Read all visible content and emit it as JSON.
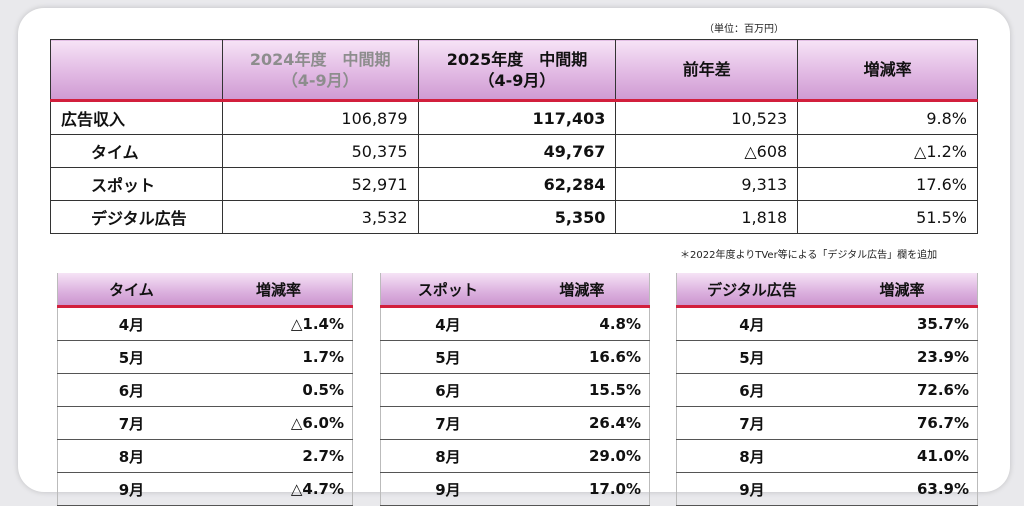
{
  "unit_note": "（単位：百万円）",
  "main": {
    "headers": [
      "",
      "2024年度　中間期\n（4-9月）",
      "2025年度　中間期\n（4-9月）",
      "前年差",
      "増減率"
    ],
    "rows": [
      {
        "label": "広告収入",
        "v2024": "106,879",
        "v2025": "117,403",
        "diff": "10,523",
        "rate": "9.8%"
      },
      {
        "label": "タイム",
        "v2024": "50,375",
        "v2025": "49,767",
        "diff": "△608",
        "rate": "△1.2%"
      },
      {
        "label": "スポット",
        "v2024": "52,971",
        "v2025": "62,284",
        "diff": "9,313",
        "rate": "17.6%"
      },
      {
        "label": "デジタル広告",
        "v2024": "3,532",
        "v2025": "5,350",
        "diff": "1,818",
        "rate": "51.5%"
      }
    ]
  },
  "footnote": "＊2022年度よりTVer等による「デジタル広告」欄を追加",
  "sub_tables": [
    {
      "title": "タイム",
      "rate_header": "増減率",
      "rows": [
        {
          "month": "4月",
          "rate": "△1.4%"
        },
        {
          "month": "5月",
          "rate": "1.7%"
        },
        {
          "month": "6月",
          "rate": "0.5%"
        },
        {
          "month": "7月",
          "rate": "△6.0%"
        },
        {
          "month": "8月",
          "rate": "2.7%"
        },
        {
          "month": "9月",
          "rate": "△4.7%"
        }
      ]
    },
    {
      "title": "スポット",
      "rate_header": "増減率",
      "rows": [
        {
          "month": "4月",
          "rate": "4.8%"
        },
        {
          "month": "5月",
          "rate": "16.6%"
        },
        {
          "month": "6月",
          "rate": "15.5%"
        },
        {
          "month": "7月",
          "rate": "26.4%"
        },
        {
          "month": "8月",
          "rate": "29.0%"
        },
        {
          "month": "9月",
          "rate": "17.0%"
        }
      ]
    },
    {
      "title": "デジタル広告",
      "rate_header": "増減率",
      "rows": [
        {
          "month": "4月",
          "rate": "35.7%"
        },
        {
          "month": "5月",
          "rate": "23.9%"
        },
        {
          "month": "6月",
          "rate": "72.6%"
        },
        {
          "month": "7月",
          "rate": "76.7%"
        },
        {
          "month": "8月",
          "rate": "41.0%"
        },
        {
          "month": "9月",
          "rate": "63.9%"
        }
      ]
    }
  ]
}
